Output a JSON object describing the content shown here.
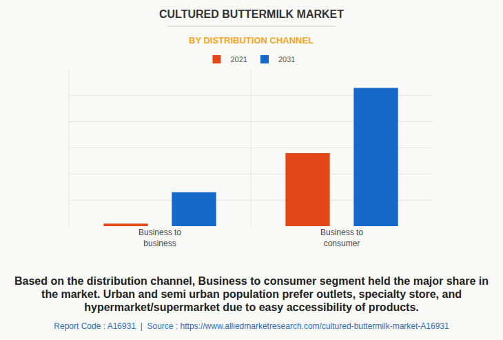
{
  "chart_data": {
    "type": "bar",
    "title": "CULTURED BUTTERMILK MARKET",
    "subtitle": "BY DISTRIBUTION CHANNEL",
    "categories": [
      "Business to business",
      "Business to consumer"
    ],
    "series": [
      {
        "name": "2021",
        "color": "#e2481a",
        "values": [
          0.1,
          2.8
        ]
      },
      {
        "name": "2031",
        "color": "#1668c8",
        "values": [
          1.3,
          5.3
        ]
      }
    ],
    "ylim": [
      0,
      6
    ],
    "yticks": [
      0,
      1,
      2,
      3,
      4,
      5,
      6
    ],
    "grid": true,
    "legend": "top",
    "tick_labels": "x",
    "annotations": [
      "Based on the distribution channel, Business to consumer segment held the major share in the market. Urban and semi urban population prefer outlets, specialty store, and hypermarket/supermarket due to easy accessibility of products.",
      "Report Code : A16931  |  Source : https://www.alliedmarketresearch.com/cultured-buttermilk-market-A16931"
    ]
  }
}
